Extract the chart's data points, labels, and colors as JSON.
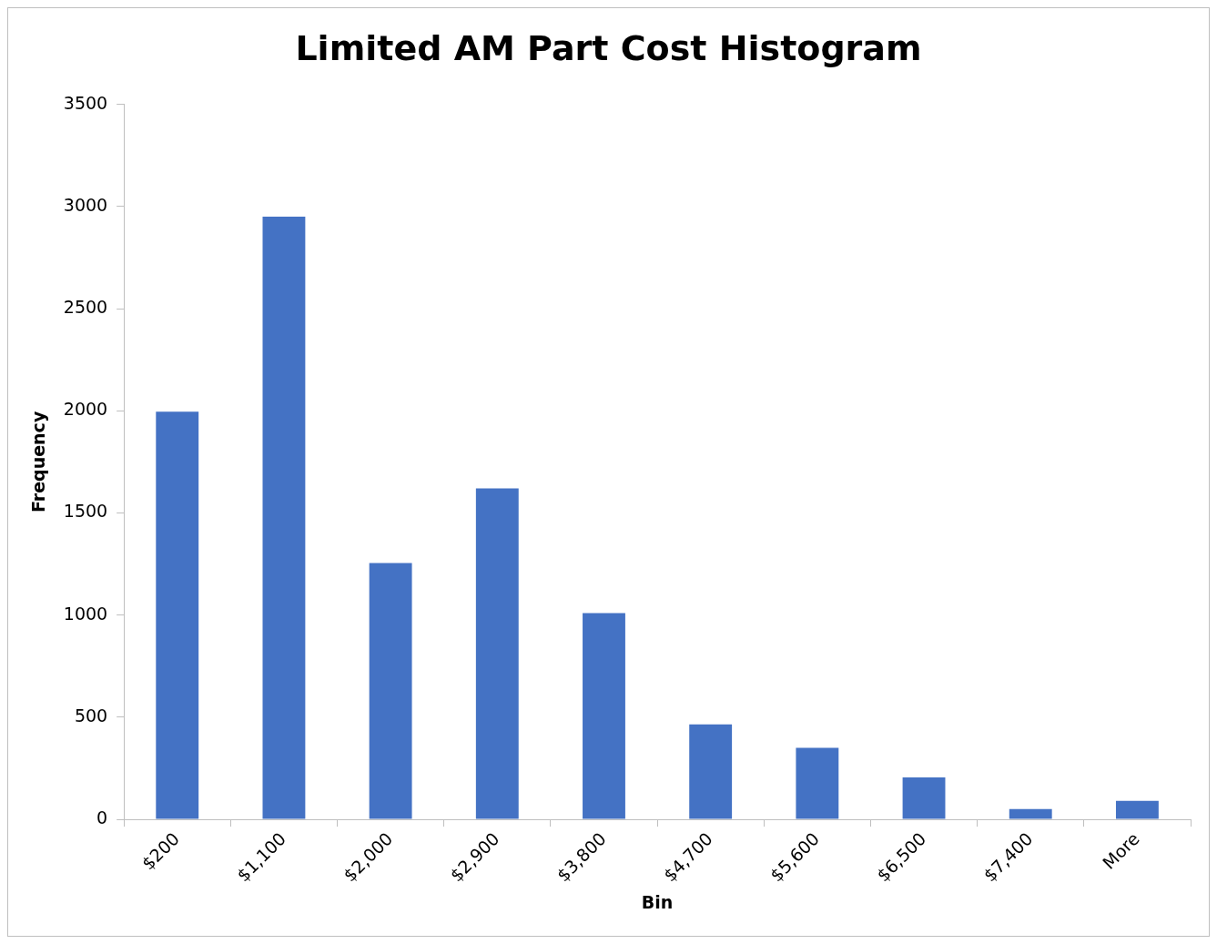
{
  "chart_data": {
    "type": "bar",
    "title": "Limited AM Part Cost Histogram",
    "xlabel": "Bin",
    "ylabel": "Frequency",
    "categories": [
      "$200",
      "$1,100",
      "$2,000",
      "$2,900",
      "$3,800",
      "$4,700",
      "$5,600",
      "$6,500",
      "$7,400",
      "More"
    ],
    "values": [
      1995,
      2950,
      1255,
      1620,
      1010,
      465,
      350,
      205,
      50,
      90
    ],
    "color": "#4472c4",
    "ylim": [
      0,
      3500
    ],
    "yticks": [
      0,
      500,
      1000,
      1500,
      2000,
      2500,
      3000,
      3500
    ],
    "grid": false,
    "legend": false
  }
}
